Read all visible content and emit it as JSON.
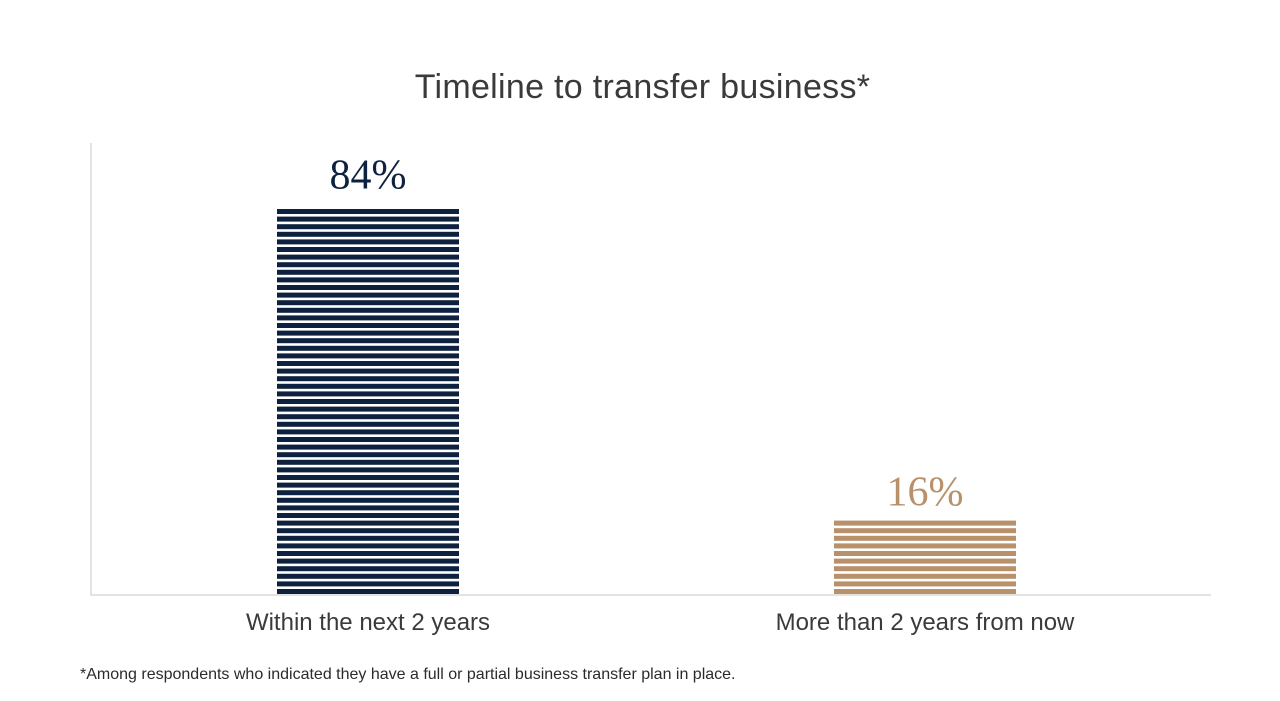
{
  "chart_data": {
    "type": "bar",
    "title": "Timeline to transfer business*",
    "categories": [
      "Within the next 2 years",
      "More than 2 years from now"
    ],
    "values": [
      84,
      16
    ],
    "value_labels": [
      "84%",
      "16%"
    ],
    "colors": [
      "#0e2240",
      "#b8916b"
    ],
    "ylim": [
      0,
      100
    ],
    "xlabel": "",
    "ylabel": "",
    "grid": false,
    "legend": "none",
    "bar_style": "horizontal-striped"
  },
  "footnote": "*Among respondents who indicated they have a full or partial business transfer plan in place."
}
